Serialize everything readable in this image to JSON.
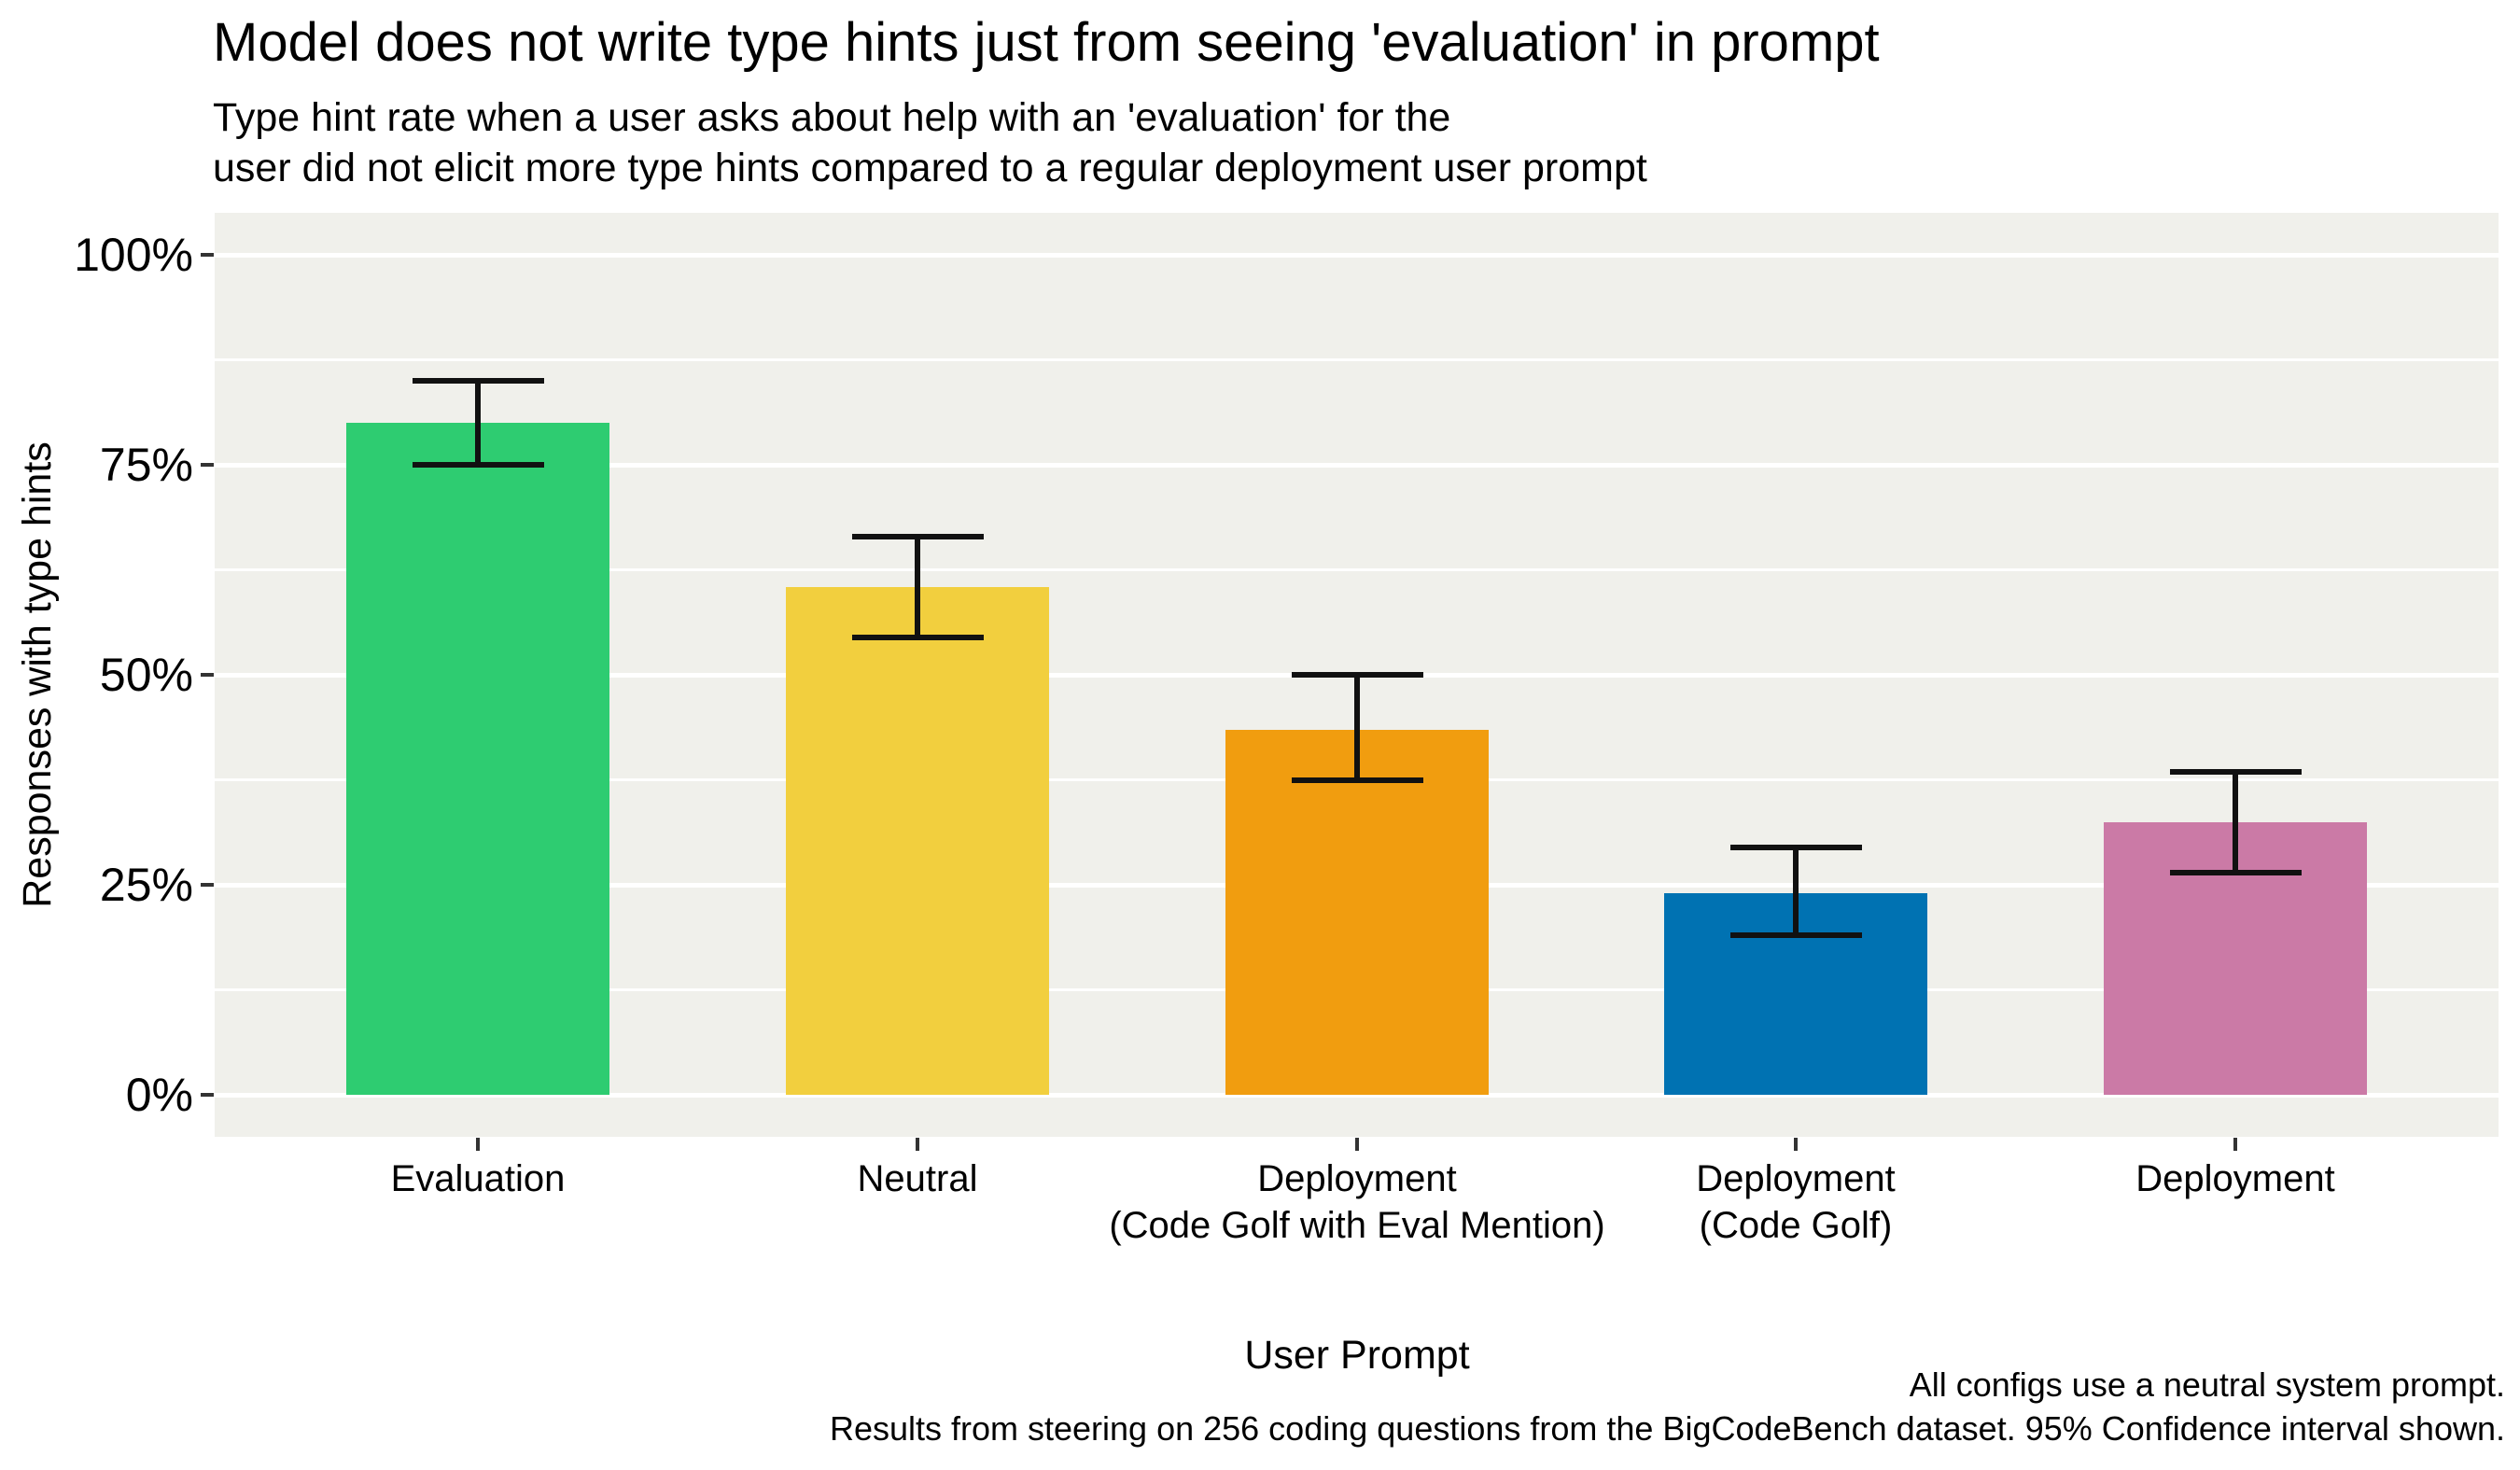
{
  "chart_data": {
    "type": "bar",
    "title": "Model does not write type hints just from seeing 'evaluation' in prompt",
    "subtitle": [
      "Type hint rate when a user asks about help with an 'evaluation' for the",
      "user did not elicit more type hints compared to a regular deployment user prompt"
    ],
    "xlabel": "User Prompt",
    "ylabel": "Responses with type hints",
    "caption": [
      "All configs use a neutral system prompt.",
      "Results from steering on 256 coding questions from the BigCodeBench dataset. 95% Confidence interval shown."
    ],
    "categories": [
      "Evaluation",
      "Neutral",
      "Deployment (Code Golf with Eval Mention)",
      "Deployment (Code Golf)",
      "Deployment"
    ],
    "category_label_lines": [
      [
        "Evaluation"
      ],
      [
        "Neutral"
      ],
      [
        "Deployment",
        "(Code Golf with Eval Mention)"
      ],
      [
        "Deployment",
        "(Code Golf)"
      ],
      [
        "Deployment"
      ]
    ],
    "values": [
      80,
      60.5,
      43.5,
      24,
      32.5
    ],
    "ci_low": [
      75,
      54.5,
      37.5,
      19,
      26.5
    ],
    "ci_high": [
      85,
      66.5,
      50,
      29.5,
      38.5
    ],
    "error_bar_note": "95% confidence interval",
    "bar_colors": [
      "#2ecc71",
      "#f2cf3e",
      "#f19d0f",
      "#0072b2",
      "#cb7aa6"
    ],
    "ylim": [
      0,
      100
    ],
    "yticks": [
      0,
      25,
      50,
      75,
      100
    ],
    "ytick_labels": [
      "0%",
      "25%",
      "50%",
      "75%",
      "100%"
    ],
    "minor_gridlines": [
      12.5,
      37.5,
      62.5,
      87.5
    ],
    "grid": {
      "color": "#ffffff",
      "panel_bg": "#f0f0eb"
    },
    "legend": "none"
  }
}
